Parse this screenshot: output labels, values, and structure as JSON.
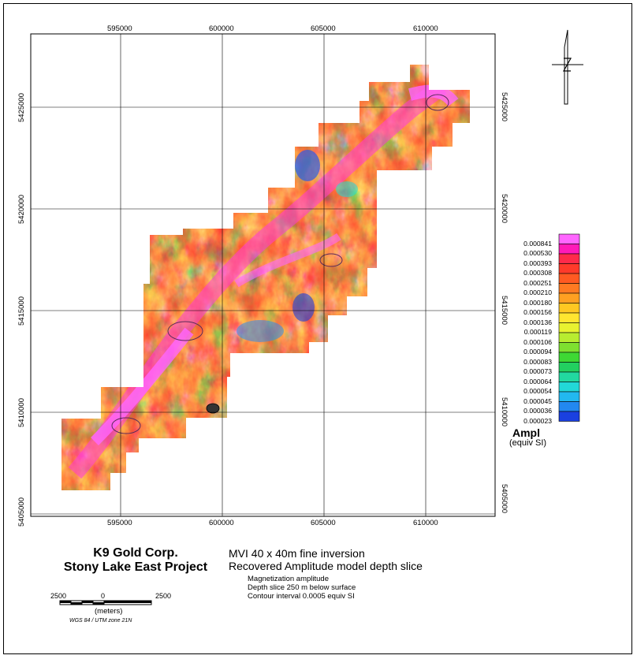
{
  "map": {
    "x_ticks_top": [
      "595000",
      "600000",
      "605000",
      "610000"
    ],
    "x_ticks_bottom": [
      "595000",
      "600000",
      "605000",
      "610000"
    ],
    "y_ticks_left": [
      "5425000",
      "5420000",
      "5415000",
      "5410000",
      "5405000"
    ],
    "y_ticks_right": [
      "5425000",
      "5420000",
      "5415000",
      "5410000",
      "5405000"
    ]
  },
  "legend": {
    "values": [
      "0.000841",
      "0.000530",
      "0.000393",
      "0.000308",
      "0.000251",
      "0.000210",
      "0.000180",
      "0.000156",
      "0.000136",
      "0.000119",
      "0.000106",
      "0.000094",
      "0.000083",
      "0.000073",
      "0.000064",
      "0.000054",
      "0.000045",
      "0.000036",
      "0.000023"
    ],
    "colors": [
      "#ff66ff",
      "#ff1ab8",
      "#ff2a4a",
      "#ff3a2a",
      "#ff5a22",
      "#ff7a22",
      "#ffa022",
      "#ffc822",
      "#ffe630",
      "#e8f230",
      "#b8ec30",
      "#7ee030",
      "#3ed834",
      "#22d060",
      "#22d8a0",
      "#22d8d8",
      "#22b8f0",
      "#2288f0",
      "#1a40e0"
    ],
    "title": "Ampl",
    "units": "(equiv SI)"
  },
  "title_block": {
    "company": "K9 Gold Corp.",
    "project": "Stony Lake East Project",
    "map_title_1": "MVI 40 x 40m fine inversion",
    "map_title_2": "Recovered Amplitude model depth slice",
    "note_1": "Magnetization amplitude",
    "note_2": "Depth slice 250 m below surface",
    "note_3": "Contour interval 0.0005 equiv SI"
  },
  "scale_bar": {
    "left_label": "2500",
    "mid_label": "0",
    "right_label": "2500",
    "unit": "(meters)",
    "projection": "WGS 84 / UTM zone 21N"
  }
}
